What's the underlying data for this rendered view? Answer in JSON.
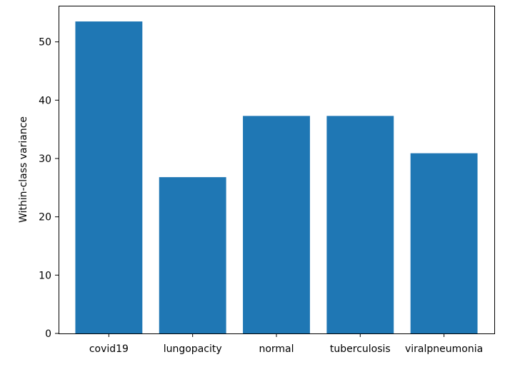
{
  "chart_data": {
    "type": "bar",
    "title": "",
    "xlabel": "",
    "ylabel": "Within-class variance",
    "categories": [
      "covid19",
      "lungopacity",
      "normal",
      "tuberculosis",
      "viralpneumonia"
    ],
    "values": [
      53.5,
      26.8,
      37.3,
      37.3,
      30.9
    ],
    "ylim": [
      0,
      56.2
    ],
    "yticks": [
      0,
      10,
      20,
      30,
      40,
      50
    ],
    "bar_color": "#1f77b4",
    "grid": false,
    "legend": "none"
  }
}
